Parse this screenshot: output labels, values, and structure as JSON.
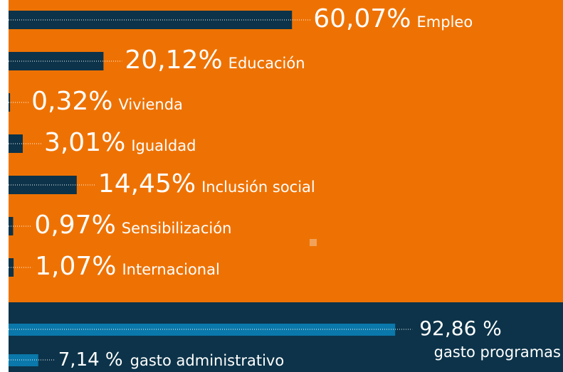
{
  "chart_data": [
    {
      "type": "bar",
      "categories": [
        "Empleo",
        "Educación",
        "Vivienda",
        "Igualdad",
        "Inclusión social",
        "Sensibilización",
        "Internacional"
      ],
      "values": [
        60.07,
        20.12,
        0.32,
        3.01,
        14.45,
        0.97,
        1.07
      ],
      "value_labels": [
        "60,07%",
        "20,12%",
        "0,32%",
        "3,01%",
        "14,45%",
        "0,97%",
        "1,07%"
      ],
      "color": "#0c3349"
    },
    {
      "type": "bar",
      "categories": [
        "gasto programas",
        "gasto administrativo"
      ],
      "values": [
        92.86,
        7.14
      ],
      "value_labels": [
        "92,86 %",
        "7,14 %"
      ],
      "color": "#0a78aa"
    }
  ]
}
